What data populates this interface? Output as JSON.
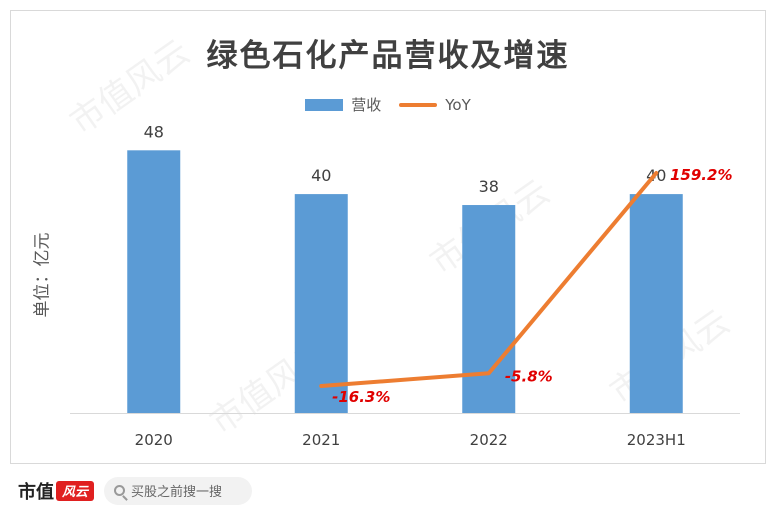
{
  "chart_data": {
    "type": "bar",
    "title": "绿色石化产品营收及增速",
    "ylabel": "单位：亿元",
    "categories": [
      "2020",
      "2021",
      "2022",
      "2023H1"
    ],
    "series": [
      {
        "name": "营收",
        "type": "bar",
        "values": [
          48,
          40,
          38,
          40
        ],
        "color": "#5b9bd5"
      },
      {
        "name": "YoY",
        "type": "line",
        "values": [
          null,
          -16.3,
          -5.8,
          159.2
        ],
        "labels": [
          "",
          "-16.3%",
          "-5.8%",
          "159.2%"
        ],
        "color": "#ed7d31"
      }
    ],
    "ylim": [
      0,
      55
    ],
    "y2lim": [
      -30,
      180
    ],
    "grid": false,
    "legend": "top-center"
  },
  "footer": {
    "logo_text": "市值",
    "logo_mark": "风云",
    "search_placeholder": "买股之前搜一搜"
  },
  "watermark": "市值风云"
}
